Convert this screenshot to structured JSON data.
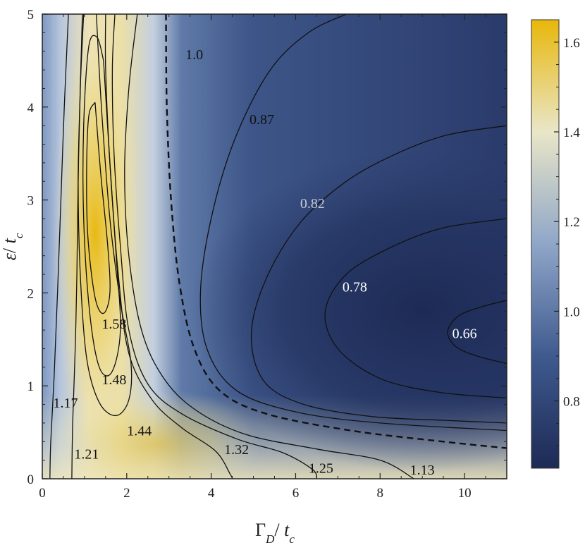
{
  "chart_data": {
    "type": "heatmap",
    "title": "",
    "x_label": {
      "main": "Γ",
      "sub1": "D",
      "slash": "/ ",
      "var": "t",
      "sub2": "c"
    },
    "y_label": {
      "main": "ε",
      "slash": "/ ",
      "var": "t",
      "sub": "c"
    },
    "xlim": [
      0,
      11
    ],
    "ylim": [
      0,
      5
    ],
    "x_ticks": [
      0,
      2,
      4,
      6,
      8,
      10
    ],
    "y_ticks": [
      0,
      1,
      2,
      3,
      4,
      5
    ],
    "x_tick_labels": [
      "0",
      "2",
      "4",
      "6",
      "8",
      "10"
    ],
    "y_tick_labels": [
      "0",
      "1",
      "2",
      "3",
      "4",
      "5"
    ],
    "colorbar": {
      "range": [
        0.65,
        1.65
      ],
      "ticks": [
        0.8,
        1.0,
        1.2,
        1.4,
        1.6
      ],
      "tick_labels": [
        "0.8",
        "1.0",
        "1.2",
        "1.4",
        "1.6"
      ],
      "colors": [
        "#1d2a55",
        "#3f5a8f",
        "#8fa6c8",
        "#e9e6c8",
        "#e8b70a"
      ]
    },
    "dashed_level": "1.0",
    "contour_labels": [
      {
        "text": "1.0",
        "x": 3.6,
        "y": 4.55,
        "color": "#111111"
      },
      {
        "text": "0.87",
        "x": 5.2,
        "y": 3.85,
        "color": "#111111"
      },
      {
        "text": "0.82",
        "x": 6.4,
        "y": 2.95,
        "color": "#c6cbd6"
      },
      {
        "text": "0.78",
        "x": 7.4,
        "y": 2.05,
        "color": "#ffffff"
      },
      {
        "text": "0.66",
        "x": 10.0,
        "y": 1.55,
        "color": "#ffffff"
      },
      {
        "text": "1.58",
        "x": 1.7,
        "y": 1.65,
        "color": "#111111"
      },
      {
        "text": "1.48",
        "x": 1.7,
        "y": 1.05,
        "color": "#111111"
      },
      {
        "text": "1.44",
        "x": 2.3,
        "y": 0.5,
        "color": "#111111"
      },
      {
        "text": "1.17",
        "x": 0.55,
        "y": 0.8,
        "color": "#111111"
      },
      {
        "text": "1.21",
        "x": 1.05,
        "y": 0.25,
        "color": "#111111"
      },
      {
        "text": "1.32",
        "x": 4.6,
        "y": 0.3,
        "color": "#111111"
      },
      {
        "text": "1.25",
        "x": 6.6,
        "y": 0.1,
        "color": "#111111"
      },
      {
        "text": "1.13",
        "x": 9.0,
        "y": 0.08,
        "color": "#111111"
      }
    ],
    "contours": [
      {
        "level": "0.66",
        "points": [
          [
            11,
            1.92
          ],
          [
            10.4,
            1.85
          ],
          [
            9.85,
            1.75
          ],
          [
            9.6,
            1.58
          ],
          [
            9.8,
            1.42
          ],
          [
            10.3,
            1.32
          ],
          [
            11,
            1.24
          ]
        ]
      },
      {
        "level": "0.78",
        "points": [
          [
            11,
            2.8
          ],
          [
            9.5,
            2.7
          ],
          [
            8.3,
            2.5
          ],
          [
            7.2,
            2.2
          ],
          [
            6.7,
            1.8
          ],
          [
            7.0,
            1.4
          ],
          [
            8.0,
            1.08
          ],
          [
            9.4,
            0.93
          ],
          [
            11,
            0.87
          ]
        ]
      },
      {
        "level": "0.82",
        "points": [
          [
            11,
            3.8
          ],
          [
            9.6,
            3.7
          ],
          [
            8.4,
            3.5
          ],
          [
            7.2,
            3.2
          ],
          [
            6.1,
            2.75
          ],
          [
            5.3,
            2.15
          ],
          [
            4.95,
            1.55
          ],
          [
            5.25,
            1.05
          ],
          [
            6.2,
            0.8
          ],
          [
            7.8,
            0.67
          ],
          [
            9.5,
            0.63
          ],
          [
            11,
            0.6
          ]
        ]
      },
      {
        "level": "0.87",
        "points": [
          [
            7.2,
            5.0
          ],
          [
            6.3,
            4.8
          ],
          [
            5.4,
            4.4
          ],
          [
            4.6,
            3.7
          ],
          [
            4.05,
            2.9
          ],
          [
            3.75,
            2.05
          ],
          [
            3.9,
            1.4
          ],
          [
            4.6,
            0.95
          ],
          [
            6.0,
            0.72
          ],
          [
            8.0,
            0.6
          ],
          [
            11,
            0.52
          ]
        ]
      },
      {
        "level": "1.0",
        "dashed": true,
        "points": [
          [
            2.93,
            5.0
          ],
          [
            2.95,
            4.0
          ],
          [
            3.05,
            3.0
          ],
          [
            3.25,
            2.1
          ],
          [
            3.6,
            1.4
          ],
          [
            4.2,
            0.95
          ],
          [
            5.3,
            0.7
          ],
          [
            7.3,
            0.52
          ],
          [
            9.5,
            0.4
          ],
          [
            11,
            0.33
          ]
        ]
      },
      {
        "level": "1.13",
        "points": [
          [
            2.25,
            5.0
          ],
          [
            2.05,
            4.2
          ],
          [
            1.95,
            3.3
          ],
          [
            2.05,
            2.4
          ],
          [
            2.35,
            1.6
          ],
          [
            2.85,
            1.1
          ],
          [
            3.6,
            0.75
          ],
          [
            4.8,
            0.48
          ],
          [
            6.5,
            0.32
          ],
          [
            8.0,
            0.2
          ],
          [
            8.8,
            0.0
          ]
        ]
      },
      {
        "level": "1.25",
        "points": [
          [
            1.72,
            5.0
          ],
          [
            1.66,
            4.4
          ],
          [
            1.7,
            3.5
          ],
          [
            1.85,
            2.5
          ],
          [
            2.05,
            1.6
          ],
          [
            2.5,
            1.02
          ],
          [
            3.3,
            0.7
          ],
          [
            4.6,
            0.43
          ],
          [
            5.7,
            0.28
          ],
          [
            6.4,
            0.1
          ],
          [
            6.5,
            0.0
          ]
        ]
      },
      {
        "level": "1.32",
        "points": [
          [
            1.5,
            5.0
          ],
          [
            1.5,
            4.4
          ],
          [
            1.6,
            3.4
          ],
          [
            1.8,
            2.2
          ],
          [
            2.05,
            1.35
          ],
          [
            2.6,
            0.85
          ],
          [
            3.3,
            0.55
          ],
          [
            4.1,
            0.3
          ],
          [
            4.45,
            0.05
          ],
          [
            4.5,
            0.0
          ]
        ]
      },
      {
        "level": "1.44",
        "points": [
          [
            1.28,
            5.0
          ],
          [
            1.4,
            4.0
          ],
          [
            1.6,
            2.8
          ],
          [
            1.85,
            1.9
          ],
          [
            2.1,
            1.25
          ],
          [
            2.05,
            0.85
          ],
          [
            1.75,
            0.68
          ],
          [
            1.35,
            0.82
          ],
          [
            1.05,
            1.3
          ],
          [
            0.9,
            2.2
          ],
          [
            0.85,
            3.2
          ],
          [
            0.9,
            4.2
          ],
          [
            0.95,
            5.0
          ]
        ]
      },
      {
        "level": "1.48",
        "points": [
          [
            1.45,
            4.5
          ],
          [
            1.6,
            3.4
          ],
          [
            1.75,
            2.4
          ],
          [
            1.85,
            1.6
          ],
          [
            1.65,
            1.15
          ],
          [
            1.35,
            1.2
          ],
          [
            1.12,
            1.8
          ],
          [
            0.98,
            2.8
          ],
          [
            0.98,
            3.8
          ],
          [
            1.1,
            4.65
          ],
          [
            1.3,
            4.75
          ],
          [
            1.45,
            4.5
          ]
        ]
      },
      {
        "level": "1.58",
        "points": [
          [
            1.25,
            4.05
          ],
          [
            1.38,
            3.3
          ],
          [
            1.55,
            2.5
          ],
          [
            1.6,
            2.0
          ],
          [
            1.45,
            1.78
          ],
          [
            1.25,
            1.95
          ],
          [
            1.08,
            2.6
          ],
          [
            1.05,
            3.3
          ],
          [
            1.1,
            3.9
          ],
          [
            1.25,
            4.05
          ]
        ]
      },
      {
        "level": "1.21",
        "points": [
          [
            0.98,
            5.0
          ],
          [
            0.9,
            4.2
          ],
          [
            0.85,
            3.2
          ],
          [
            0.82,
            2.2
          ],
          [
            0.78,
            1.4
          ],
          [
            0.72,
            0.6
          ],
          [
            0.7,
            0.0
          ]
        ]
      },
      {
        "level": "1.17",
        "points": [
          [
            0.62,
            5.0
          ],
          [
            0.52,
            4.0
          ],
          [
            0.44,
            3.0
          ],
          [
            0.36,
            2.0
          ],
          [
            0.28,
            1.1
          ],
          [
            0.2,
            0.4
          ],
          [
            0.18,
            0.0
          ]
        ]
      }
    ]
  }
}
